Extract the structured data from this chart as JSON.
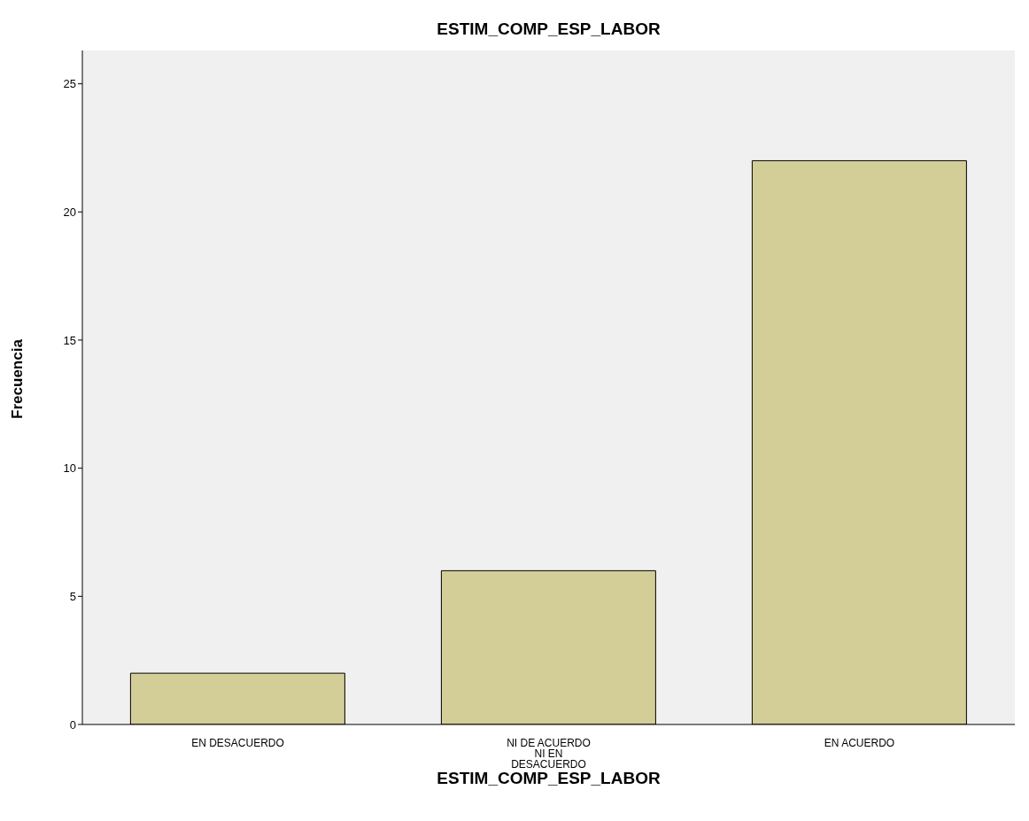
{
  "chart_data": {
    "type": "bar",
    "title": "ESTIM_COMP_ESP_LABOR",
    "xlabel": "ESTIM_COMP_ESP_LABOR",
    "ylabel": "Frecuencia",
    "categories": [
      "EN DESACUERDO",
      "NI DE ACUERDO NI EN DESACUERDO",
      "EN ACUERDO"
    ],
    "values": [
      2,
      6,
      22
    ],
    "color": "#d3ce97",
    "ylim": [
      0,
      26.3
    ],
    "yticks": [
      0,
      5,
      10,
      15,
      20,
      25
    ],
    "grid": false,
    "legend": false
  }
}
